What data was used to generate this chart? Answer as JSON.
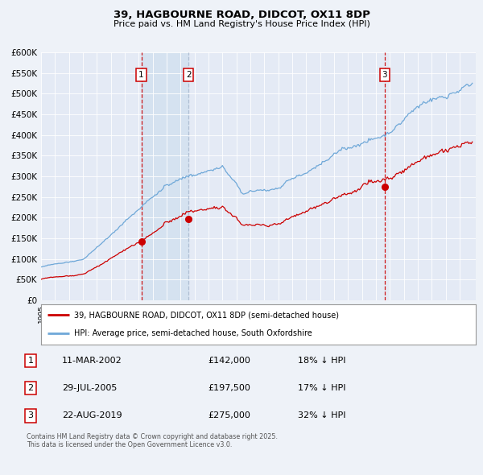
{
  "title1": "39, HAGBOURNE ROAD, DIDCOT, OX11 8DP",
  "title2": "Price paid vs. HM Land Registry's House Price Index (HPI)",
  "background_color": "#eef2f8",
  "plot_bg_color": "#e4eaf5",
  "shaded_region_color": "#d5e2f0",
  "ylim": [
    0,
    600000
  ],
  "yticks": [
    0,
    50000,
    100000,
    150000,
    200000,
    250000,
    300000,
    350000,
    400000,
    450000,
    500000,
    550000,
    600000
  ],
  "ytick_labels": [
    "£0",
    "£50K",
    "£100K",
    "£150K",
    "£200K",
    "£250K",
    "£300K",
    "£350K",
    "£400K",
    "£450K",
    "£500K",
    "£550K",
    "£600K"
  ],
  "x_start_year": 1995,
  "x_end_year": 2026,
  "hpi_color": "#6fa8d8",
  "property_color": "#cc0000",
  "sale1_year": 2002,
  "sale1_month": 3,
  "sale1_day": 11,
  "sale1_price": 142000,
  "sale2_year": 2005,
  "sale2_month": 7,
  "sale2_day": 29,
  "sale2_price": 197500,
  "sale3_year": 2019,
  "sale3_month": 8,
  "sale3_day": 22,
  "sale3_price": 275000,
  "legend1": "39, HAGBOURNE ROAD, DIDCOT, OX11 8DP (semi-detached house)",
  "legend2": "HPI: Average price, semi-detached house, South Oxfordshire",
  "table_row1_num": "1",
  "table_row1_date": "11-MAR-2002",
  "table_row1_price": "£142,000",
  "table_row1_hpi": "18% ↓ HPI",
  "table_row2_num": "2",
  "table_row2_date": "29-JUL-2005",
  "table_row2_price": "£197,500",
  "table_row2_hpi": "17% ↓ HPI",
  "table_row3_num": "3",
  "table_row3_date": "22-AUG-2019",
  "table_row3_price": "£275,000",
  "table_row3_hpi": "32% ↓ HPI",
  "footer": "Contains HM Land Registry data © Crown copyright and database right 2025.\nThis data is licensed under the Open Government Licence v3.0."
}
